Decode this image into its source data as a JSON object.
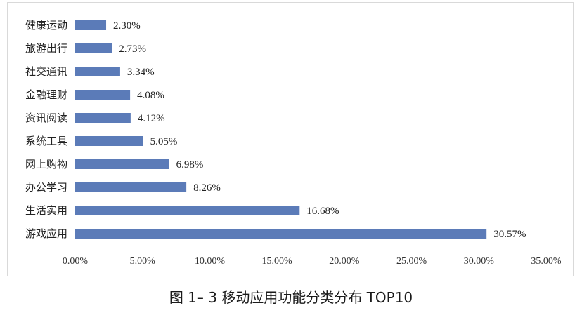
{
  "caption": "图 1– 3 移动应用功能分类分布 TOP10",
  "chart_data": {
    "type": "bar",
    "orientation": "horizontal",
    "categories": [
      "健康运动",
      "旅游出行",
      "社交通讯",
      "金融理财",
      "资讯阅读",
      "系统工具",
      "网上购物",
      "办公学习",
      "生活实用",
      "游戏应用"
    ],
    "values": [
      2.3,
      2.73,
      3.34,
      4.08,
      4.12,
      5.05,
      6.98,
      8.26,
      16.68,
      30.57
    ],
    "value_labels": [
      "2.30%",
      "2.73%",
      "3.34%",
      "4.08%",
      "4.12%",
      "5.05%",
      "6.98%",
      "8.26%",
      "16.68%",
      "30.57%"
    ],
    "xlim": [
      0,
      35
    ],
    "x_ticks": [
      0,
      5,
      10,
      15,
      20,
      25,
      30,
      35
    ],
    "x_tick_labels": [
      "0.00%",
      "5.00%",
      "10.00%",
      "15.00%",
      "20.00%",
      "25.00%",
      "30.00%",
      "35.00%"
    ],
    "grid": false,
    "bar_color": "#5b7bb8"
  }
}
